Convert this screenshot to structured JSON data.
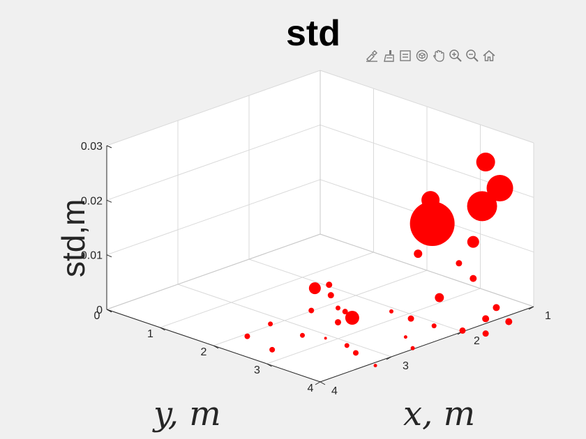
{
  "figure": {
    "title": "std",
    "toolbar": [
      {
        "name": "brush-export-icon"
      },
      {
        "name": "data-brush-icon"
      },
      {
        "name": "data-tips-icon"
      },
      {
        "name": "rotate-3d-icon"
      },
      {
        "name": "pan-hand-icon"
      },
      {
        "name": "zoom-in-icon"
      },
      {
        "name": "zoom-out-icon"
      },
      {
        "name": "home-icon"
      }
    ]
  },
  "chart_data": {
    "type": "scatter3d",
    "title": "std",
    "xlabel": "x, m",
    "ylabel": "y, m",
    "zlabel": "std,m",
    "xlim": [
      1,
      4
    ],
    "ylim": [
      0,
      4
    ],
    "zlim": [
      0,
      0.03
    ],
    "xticks": [
      "1",
      "2",
      "3",
      "4"
    ],
    "yticks": [
      "0",
      "1",
      "2",
      "3",
      "4"
    ],
    "zticks": [
      "0",
      "0.01",
      "0.02",
      "0.03"
    ],
    "grid": true,
    "marker_color": "#ff0000",
    "points": [
      {
        "x": 1.0,
        "y": 3.1,
        "z": 0.0235,
        "size": 27
      },
      {
        "x": 1.1,
        "y": 3.5,
        "z": 0.0205,
        "size": 38
      },
      {
        "x": 1.2,
        "y": 3.3,
        "z": 0.017,
        "size": 43
      },
      {
        "x": 1.1,
        "y": 3.0,
        "z": 0.009,
        "size": 17
      },
      {
        "x": 1.3,
        "y": 3.0,
        "z": 0.006,
        "size": 9
      },
      {
        "x": 1.1,
        "y": 2.2,
        "z": 0.014,
        "size": 26
      },
      {
        "x": 1.9,
        "y": 3.3,
        "z": 0.017,
        "size": 64
      },
      {
        "x": 1.5,
        "y": 2.5,
        "z": 0.007,
        "size": 12
      },
      {
        "x": 1.4,
        "y": 3.4,
        "z": 0.005,
        "size": 10
      },
      {
        "x": 1.8,
        "y": 3.3,
        "z": 0.003,
        "size": 13
      },
      {
        "x": 2.8,
        "y": 2.3,
        "z": 0.006,
        "size": 17
      },
      {
        "x": 2.2,
        "y": 3.3,
        "z": 0.001,
        "size": 9
      },
      {
        "x": 2.2,
        "y": 1.8,
        "z": 0.0003,
        "size": 9
      },
      {
        "x": 2.0,
        "y": 1.5,
        "z": 0.0003,
        "size": 9
      },
      {
        "x": 2.9,
        "y": 3.0,
        "z": 0.0045,
        "size": 8
      },
      {
        "x": 3.0,
        "y": 2.5,
        "z": 0.0035,
        "size": 8
      },
      {
        "x": 2.1,
        "y": 2.8,
        "z": 0.0002,
        "size": 6
      },
      {
        "x": 2.4,
        "y": 2.2,
        "z": 0.0002,
        "size": 7
      },
      {
        "x": 2.7,
        "y": 2.6,
        "z": 0.0003,
        "size": 9
      },
      {
        "x": 3.1,
        "y": 3.3,
        "z": 0.0002,
        "size": 7
      },
      {
        "x": 3.2,
        "y": 3.6,
        "z": 0.0003,
        "size": 8
      },
      {
        "x": 1.6,
        "y": 3.9,
        "z": 0.0002,
        "size": 10
      },
      {
        "x": 1.3,
        "y": 3.7,
        "z": 0.0002,
        "size": 10
      },
      {
        "x": 1.5,
        "y": 4.2,
        "z": 0.0002,
        "size": 10
      },
      {
        "x": 2.5,
        "y": 3.6,
        "z": 0.0,
        "size": 5
      },
      {
        "x": 2.5,
        "y": 2.6,
        "z": 0.0002,
        "size": 20
      },
      {
        "x": 3.2,
        "y": 2.6,
        "z": 0.0002,
        "size": 7
      },
      {
        "x": 3.6,
        "y": 2.1,
        "z": 0.0002,
        "size": 8
      },
      {
        "x": 3.2,
        "y": 2.0,
        "z": 0.0003,
        "size": 7
      },
      {
        "x": 3.7,
        "y": 2.7,
        "z": 0.0002,
        "size": 8
      },
      {
        "x": 2.1,
        "y": 3.6,
        "z": 0.0002,
        "size": 7
      },
      {
        "x": 2.0,
        "y": 4.0,
        "z": 0.0002,
        "size": 9
      },
      {
        "x": 1.9,
        "y": 4.3,
        "z": 0.0002,
        "size": 9
      },
      {
        "x": 2.7,
        "y": 4.0,
        "z": 0.0002,
        "size": 6
      },
      {
        "x": 3.3,
        "y": 4.1,
        "z": 0.0001,
        "size": 5
      },
      {
        "x": 3.1,
        "y": 2.9,
        "z": 0.0002,
        "size": 4
      }
    ]
  }
}
